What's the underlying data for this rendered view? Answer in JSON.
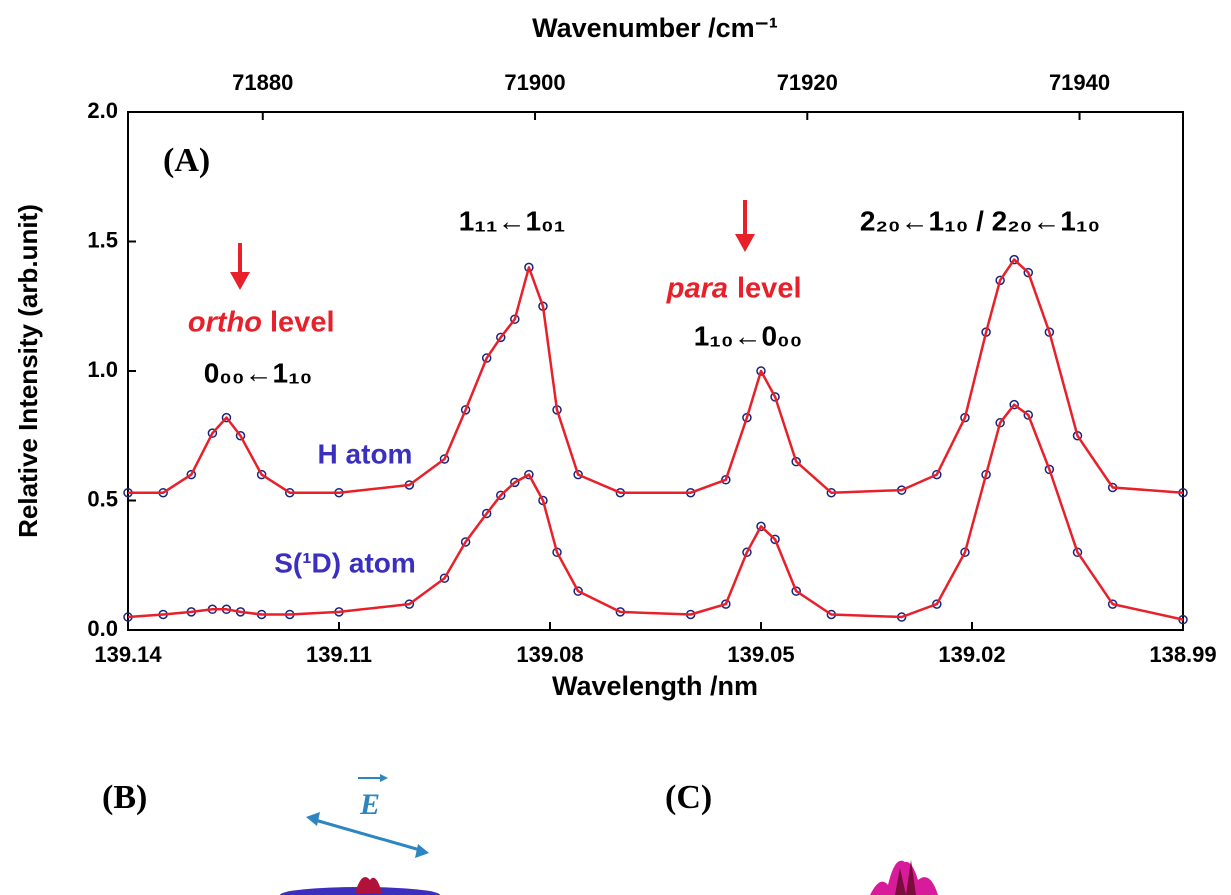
{
  "chart_data": {
    "type": "line",
    "title": "(A)",
    "xlabel": "Wavelength /nm",
    "ylabel": "Relative Intensity (arb.unit)",
    "x2label": "Wavenumber /cm⁻¹",
    "xlim": [
      139.14,
      138.99
    ],
    "xticks": [
      139.14,
      139.11,
      139.08,
      139.05,
      139.02,
      138.99
    ],
    "x2lim": [
      71870.1,
      71947.6
    ],
    "x2ticks": [
      71880,
      71900,
      71920,
      71940
    ],
    "ylim": [
      0,
      2
    ],
    "yticks": [
      {
        "value": 0,
        "label": "0.0"
      },
      0.5,
      {
        "value": 1,
        "label": "1.0"
      },
      1.5,
      {
        "value": 2,
        "label": "2.0"
      }
    ],
    "x": [
      139.14,
      139.135,
      139.131,
      139.128,
      139.126,
      139.124,
      139.121,
      139.117,
      139.11,
      139.1,
      139.095,
      139.092,
      139.089,
      139.087,
      139.085,
      139.083,
      139.081,
      139.079,
      139.076,
      139.07,
      139.06,
      139.055,
      139.052,
      139.05,
      139.048,
      139.045,
      139.04,
      139.03,
      139.025,
      139.021,
      139.018,
      139.016,
      139.014,
      139.012,
      139.009,
      139.005,
      139.0,
      138.99
    ],
    "series": [
      {
        "name": "H atom",
        "color": "#e8202a",
        "marker_color": "#1a237e",
        "values": [
          0.53,
          0.53,
          0.6,
          0.76,
          0.82,
          0.75,
          0.6,
          0.53,
          0.53,
          0.56,
          0.66,
          0.85,
          1.05,
          1.13,
          1.2,
          1.4,
          1.25,
          0.85,
          0.6,
          0.53,
          0.53,
          0.58,
          0.82,
          1.0,
          0.9,
          0.65,
          0.53,
          0.54,
          0.6,
          0.82,
          1.15,
          1.35,
          1.43,
          1.38,
          1.15,
          0.75,
          0.55,
          0.53
        ]
      },
      {
        "name": "S(¹D) atom",
        "color": "#e8202a",
        "marker_color": "#1a237e",
        "values": [
          0.05,
          0.06,
          0.07,
          0.08,
          0.08,
          0.07,
          0.06,
          0.06,
          0.07,
          0.1,
          0.2,
          0.34,
          0.45,
          0.52,
          0.57,
          0.6,
          0.5,
          0.3,
          0.15,
          0.07,
          0.06,
          0.1,
          0.3,
          0.4,
          0.35,
          0.15,
          0.06,
          0.05,
          0.1,
          0.3,
          0.6,
          0.8,
          0.87,
          0.83,
          0.62,
          0.3,
          0.1,
          0.04
        ]
      }
    ],
    "annotations": {
      "ortho": "ortho",
      "ortho_level": "level",
      "para": "para",
      "para_level": "level",
      "t1": "0₀₀←1₁₀",
      "t2": "1₁₁←1₀₁",
      "t3": "1₁₀←0₀₀",
      "t4": "2₂₀←1₁₀ / 2₂₀←1₁₀"
    }
  },
  "panels": {
    "b": "(B)",
    "c": "(C)",
    "field": "E"
  }
}
